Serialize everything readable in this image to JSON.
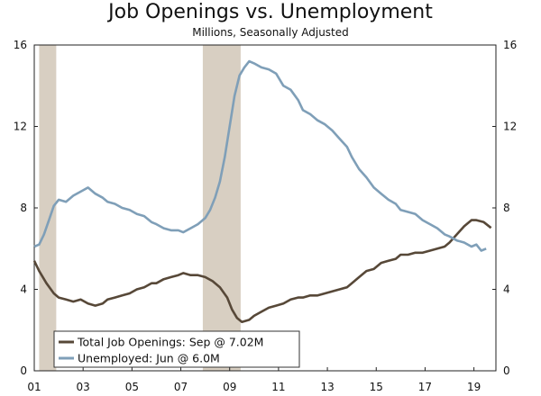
{
  "chart_data": {
    "type": "line",
    "title": "Job Openings vs. Unemployment",
    "subtitle": "Millions, Seasonally Adjusted",
    "xlim": [
      2001.0,
      2019.9
    ],
    "ylim": [
      0,
      16
    ],
    "x_ticks": [
      {
        "value": 2001,
        "label": "01"
      },
      {
        "value": 2003,
        "label": "03"
      },
      {
        "value": 2005,
        "label": "05"
      },
      {
        "value": 2007,
        "label": "07"
      },
      {
        "value": 2009,
        "label": "09"
      },
      {
        "value": 2011,
        "label": "11"
      },
      {
        "value": 2013,
        "label": "13"
      },
      {
        "value": 2015,
        "label": "15"
      },
      {
        "value": 2017,
        "label": "17"
      },
      {
        "value": 2019,
        "label": "19"
      }
    ],
    "y_ticks": [
      0,
      4,
      8,
      12,
      16
    ],
    "recessions": [
      {
        "start": 2001.2,
        "end": 2001.9
      },
      {
        "start": 2007.9,
        "end": 2009.45
      }
    ],
    "series": [
      {
        "name": "Total Job Openings: Sep @ 7.02M",
        "color": "#574838",
        "x": [
          2001.0,
          2001.2,
          2001.5,
          2001.8,
          2002.0,
          2002.3,
          2002.6,
          2002.9,
          2003.2,
          2003.5,
          2003.8,
          2004.0,
          2004.3,
          2004.6,
          2004.9,
          2005.2,
          2005.5,
          2005.8,
          2006.0,
          2006.3,
          2006.6,
          2006.9,
          2007.1,
          2007.4,
          2007.7,
          2008.0,
          2008.3,
          2008.6,
          2008.9,
          2009.1,
          2009.3,
          2009.5,
          2009.8,
          2010.0,
          2010.3,
          2010.6,
          2010.9,
          2011.2,
          2011.5,
          2011.8,
          2012.0,
          2012.3,
          2012.6,
          2012.9,
          2013.2,
          2013.5,
          2013.8,
          2014.0,
          2014.3,
          2014.6,
          2014.9,
          2015.2,
          2015.5,
          2015.8,
          2016.0,
          2016.3,
          2016.6,
          2016.9,
          2017.2,
          2017.5,
          2017.8,
          2018.0,
          2018.3,
          2018.6,
          2018.9,
          2019.1,
          2019.4,
          2019.7
        ],
        "values": [
          5.4,
          4.9,
          4.3,
          3.8,
          3.6,
          3.5,
          3.4,
          3.5,
          3.3,
          3.2,
          3.3,
          3.5,
          3.6,
          3.7,
          3.8,
          4.0,
          4.1,
          4.3,
          4.3,
          4.5,
          4.6,
          4.7,
          4.8,
          4.7,
          4.7,
          4.6,
          4.4,
          4.1,
          3.6,
          3.0,
          2.6,
          2.4,
          2.5,
          2.7,
          2.9,
          3.1,
          3.2,
          3.3,
          3.5,
          3.6,
          3.6,
          3.7,
          3.7,
          3.8,
          3.9,
          4.0,
          4.1,
          4.3,
          4.6,
          4.9,
          5.0,
          5.3,
          5.4,
          5.5,
          5.7,
          5.7,
          5.8,
          5.8,
          5.9,
          6.0,
          6.1,
          6.3,
          6.7,
          7.1,
          7.4,
          7.4,
          7.3,
          7.02
        ]
      },
      {
        "name": "Unemployed: Jun @ 6.0M",
        "color": "#7f9fb8",
        "x": [
          2001.0,
          2001.2,
          2001.4,
          2001.6,
          2001.8,
          2002.0,
          2002.3,
          2002.6,
          2002.9,
          2003.2,
          2003.5,
          2003.8,
          2004.0,
          2004.3,
          2004.6,
          2004.9,
          2005.2,
          2005.5,
          2005.8,
          2006.0,
          2006.3,
          2006.6,
          2006.9,
          2007.1,
          2007.4,
          2007.7,
          2008.0,
          2008.2,
          2008.4,
          2008.6,
          2008.8,
          2009.0,
          2009.2,
          2009.4,
          2009.6,
          2009.8,
          2010.0,
          2010.3,
          2010.6,
          2010.9,
          2011.2,
          2011.5,
          2011.8,
          2012.0,
          2012.3,
          2012.6,
          2012.9,
          2013.2,
          2013.5,
          2013.8,
          2014.0,
          2014.3,
          2014.6,
          2014.9,
          2015.2,
          2015.5,
          2015.8,
          2016.0,
          2016.3,
          2016.6,
          2016.9,
          2017.2,
          2017.5,
          2017.8,
          2018.0,
          2018.3,
          2018.6,
          2018.9,
          2019.1,
          2019.3,
          2019.5
        ],
        "values": [
          6.1,
          6.2,
          6.7,
          7.4,
          8.1,
          8.4,
          8.3,
          8.6,
          8.8,
          9.0,
          8.7,
          8.5,
          8.3,
          8.2,
          8.0,
          7.9,
          7.7,
          7.6,
          7.3,
          7.2,
          7.0,
          6.9,
          6.9,
          6.8,
          7.0,
          7.2,
          7.5,
          7.9,
          8.5,
          9.3,
          10.5,
          12.0,
          13.5,
          14.5,
          14.9,
          15.2,
          15.1,
          14.9,
          14.8,
          14.6,
          14.0,
          13.8,
          13.3,
          12.8,
          12.6,
          12.3,
          12.1,
          11.8,
          11.4,
          11.0,
          10.5,
          9.9,
          9.5,
          9.0,
          8.7,
          8.4,
          8.2,
          7.9,
          7.8,
          7.7,
          7.4,
          7.2,
          7.0,
          6.7,
          6.6,
          6.4,
          6.3,
          6.1,
          6.2,
          5.9,
          6.0
        ]
      }
    ],
    "legend": {
      "position": "bottom-left"
    }
  }
}
